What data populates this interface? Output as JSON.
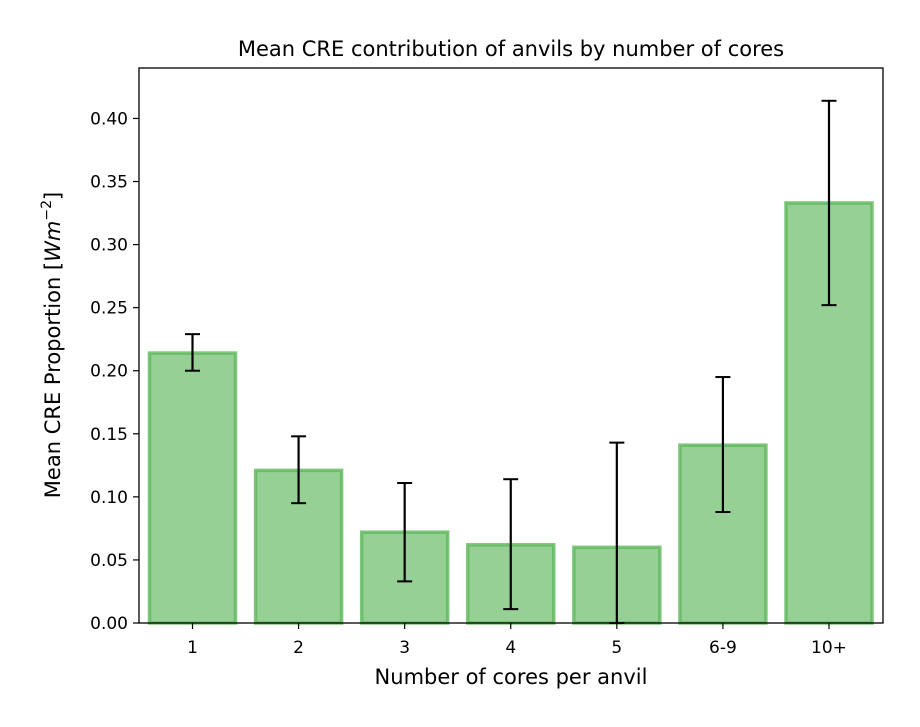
{
  "chart_data": {
    "type": "bar",
    "title": "Mean CRE contribution of anvils by number of cores",
    "xlabel": "Number of cores per anvil",
    "ylabel": {
      "prefix": "Mean CRE Proportion [",
      "unit_main": "Wm",
      "unit_exp": "−2",
      "suffix": "]"
    },
    "categories": [
      "1",
      "2",
      "3",
      "4",
      "5",
      "6-9",
      "10+"
    ],
    "values": [
      0.214,
      0.121,
      0.072,
      0.062,
      0.06,
      0.141,
      0.333
    ],
    "error_low": [
      0.2,
      0.095,
      0.033,
      0.011,
      0.0,
      0.088,
      0.252
    ],
    "error_high": [
      0.229,
      0.148,
      0.111,
      0.114,
      0.143,
      0.195,
      0.414
    ],
    "ylim": [
      0.0,
      0.44
    ],
    "yticks": [
      "0.00",
      "0.05",
      "0.10",
      "0.15",
      "0.20",
      "0.25",
      "0.30",
      "0.35",
      "0.40"
    ],
    "grid": false,
    "colors": {
      "bar_fill": "#97d095",
      "bar_edge": "#5cb85a",
      "error_bar": "#000000"
    }
  }
}
